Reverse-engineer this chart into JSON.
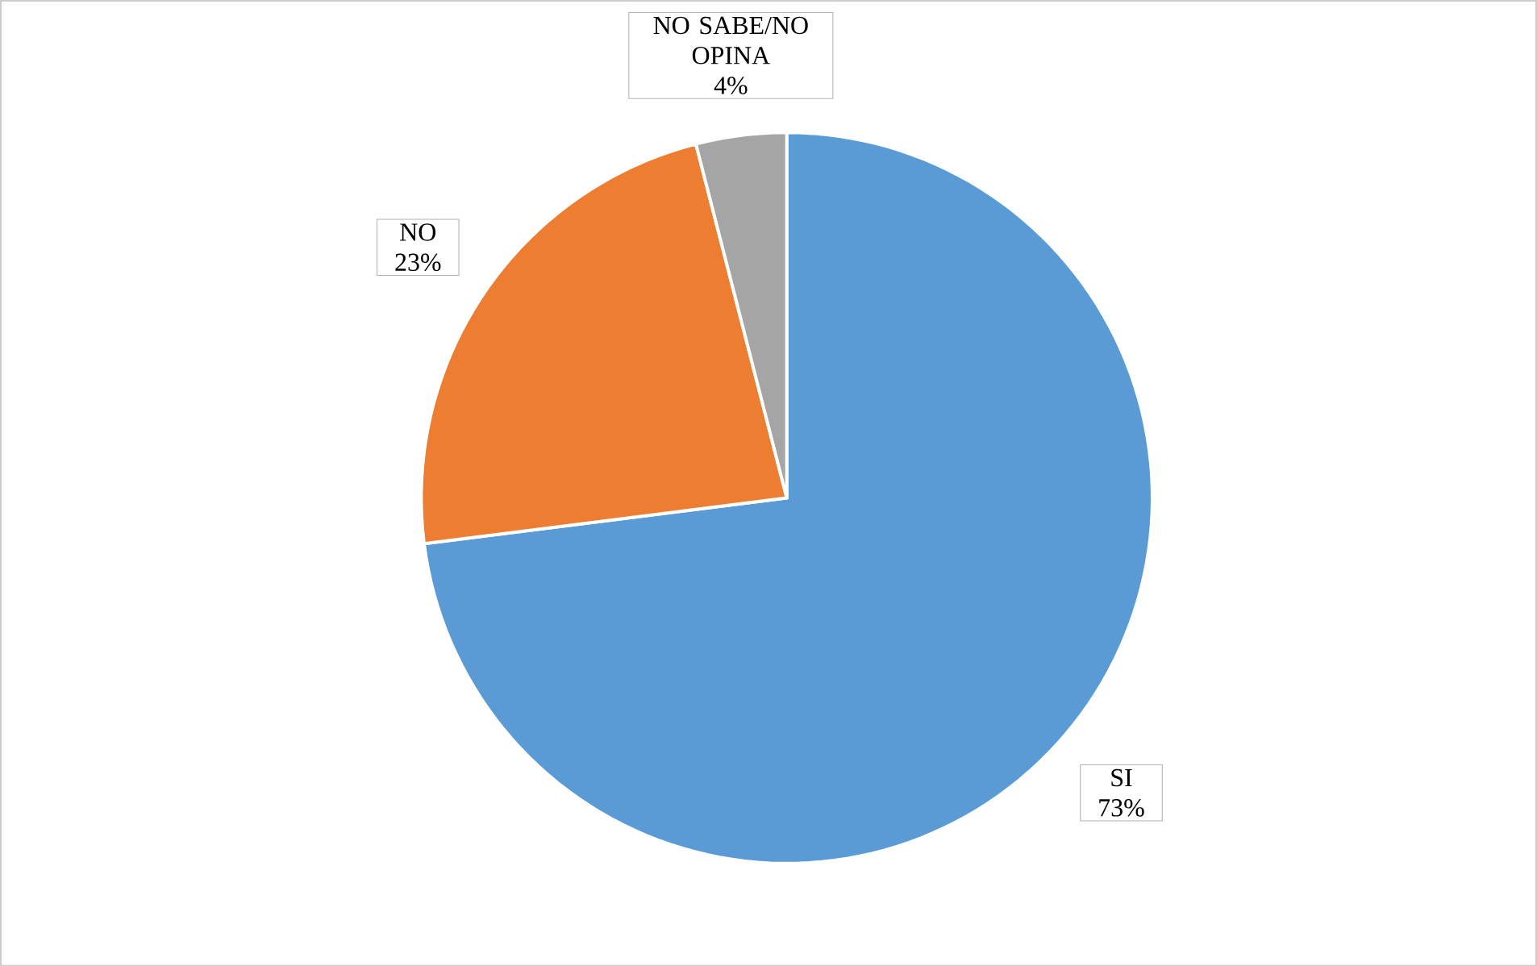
{
  "chart_data": {
    "type": "pie",
    "categories": [
      "SI",
      "NO",
      "NO SABE/NO OPINA"
    ],
    "values": [
      73,
      23,
      4
    ],
    "value_labels": [
      "73%",
      "23%",
      "4%"
    ],
    "colors": [
      "#5b9bd5",
      "#ed7d31",
      "#a5a5a5"
    ]
  }
}
